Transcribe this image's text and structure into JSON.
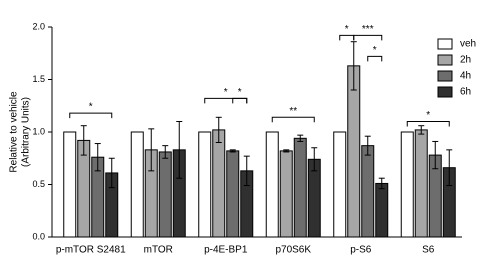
{
  "chart_data": {
    "type": "bar",
    "ylabel": [
      "Relative to vehicle",
      "(Arbitrary Units)"
    ],
    "categories": [
      "p-mTOR S2481",
      "mTOR",
      "p-4E-BP1",
      "p70S6K",
      "p-S6",
      "S6"
    ],
    "series": [
      {
        "name": "veh",
        "color": "#ffffff",
        "values": [
          1.0,
          1.0,
          1.0,
          1.0,
          1.0,
          1.0
        ],
        "errors": [
          0,
          0,
          0,
          0,
          0,
          0
        ]
      },
      {
        "name": "2h",
        "color": "#a6a6a6",
        "values": [
          0.92,
          0.83,
          1.02,
          0.82,
          1.63,
          1.02
        ],
        "errors": [
          0.14,
          0.2,
          0.12,
          0.01,
          0.23,
          0.04
        ]
      },
      {
        "name": "4h",
        "color": "#6d6d6d",
        "values": [
          0.76,
          0.81,
          0.82,
          0.94,
          0.87,
          0.78
        ],
        "errors": [
          0.13,
          0.06,
          0.01,
          0.03,
          0.09,
          0.13
        ]
      },
      {
        "name": "6h",
        "color": "#303030",
        "values": [
          0.61,
          0.83,
          0.63,
          0.74,
          0.51,
          0.66
        ],
        "errors": [
          0.14,
          0.27,
          0.14,
          0.11,
          0.05,
          0.17
        ]
      }
    ],
    "annotations": [
      "*",
      "*",
      "*",
      "**",
      "*",
      "***",
      "*",
      "*"
    ],
    "ylim": [
      0,
      2
    ],
    "yticks": [
      {
        "value": 0,
        "label": "0.0"
      },
      {
        "value": 0.5,
        "label": "0.5"
      },
      {
        "value": 1,
        "label": "1.0"
      },
      {
        "value": 1.5,
        "label": "1.5"
      },
      {
        "value": 2,
        "label": "2.0"
      }
    ],
    "legend": "upper right"
  }
}
